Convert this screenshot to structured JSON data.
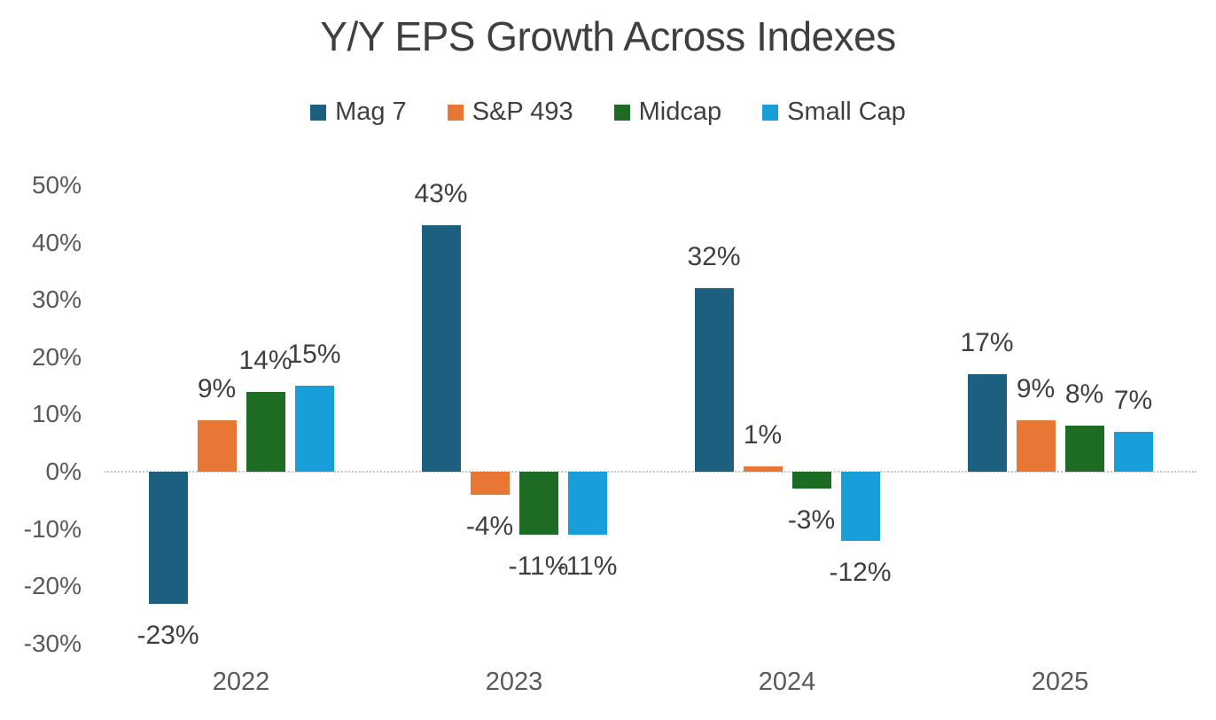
{
  "chart_data": {
    "type": "bar",
    "title": "Y/Y EPS Growth Across Indexes",
    "categories": [
      "2022",
      "2023",
      "2024",
      "2025"
    ],
    "series": [
      {
        "name": "Mag 7",
        "color": "#1C5F7E",
        "values": [
          -23,
          43,
          32,
          17
        ]
      },
      {
        "name": "S&P 493",
        "color": "#E87634",
        "values": [
          9,
          -4,
          1,
          9
        ]
      },
      {
        "name": "Midcap",
        "color": "#1E6C24",
        "values": [
          14,
          -11,
          -3,
          8
        ]
      },
      {
        "name": "Small Cap",
        "color": "#189ED8",
        "values": [
          15,
          -11,
          -12,
          7
        ]
      }
    ],
    "data_label_format": "{value}%",
    "y_axis": {
      "min": -30,
      "max": 50,
      "tick_step": 10,
      "tick_values": [
        50,
        40,
        30,
        20,
        10,
        0,
        -10,
        -20,
        -30
      ],
      "tick_labels": [
        "50%",
        "40%",
        "30%",
        "20%",
        "10%",
        "0%",
        "-10%",
        "-20%",
        "-30%"
      ]
    },
    "legend_position": "top",
    "grid": false,
    "zero_line": true
  },
  "colors": {
    "background": "#FFFFFF",
    "title_text": "#3F3F3F",
    "legend_text": "#3F3F3F",
    "axis_text": "#595959",
    "data_label_text": "#3F3F3F",
    "zero_line": "#C9C9C9"
  }
}
